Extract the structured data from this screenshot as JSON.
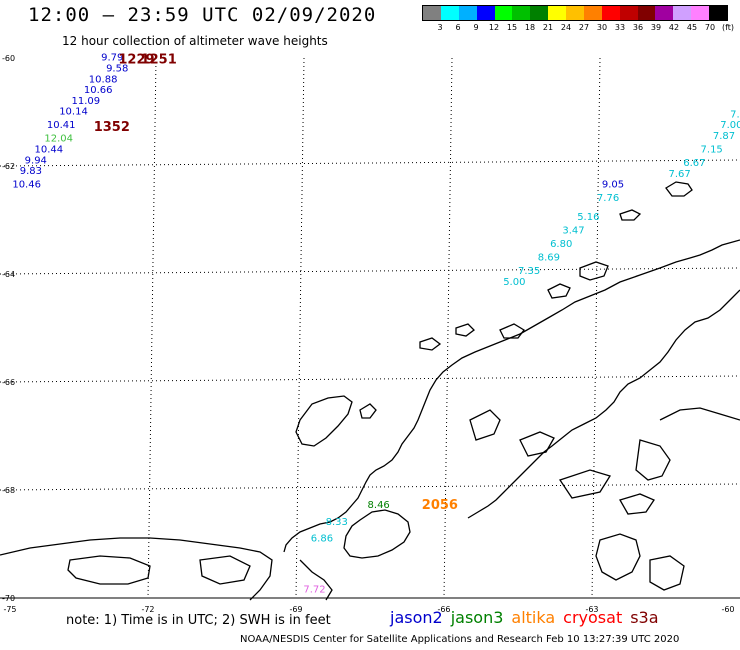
{
  "header": {
    "title": "12:00 – 23:59 UTC 02/09/2020",
    "subtitle": "12 hour collection of altimeter wave heights"
  },
  "colorbar": {
    "colors": [
      "#808080",
      "#00ffff",
      "#00b0ff",
      "#0000ff",
      "#00ff00",
      "#00c000",
      "#008000",
      "#ffff00",
      "#ffc000",
      "#ff8000",
      "#ff0000",
      "#c00000",
      "#800000",
      "#a000a0",
      "#d0a0ff",
      "#ff80ff",
      "#000000"
    ],
    "labels": [
      "3",
      "6",
      "9",
      "12",
      "15",
      "18",
      "21",
      "24",
      "27",
      "30",
      "33",
      "36",
      "39",
      "42",
      "45",
      "70",
      "(ft)"
    ]
  },
  "axes": {
    "y_labels": [
      "-60",
      "-62",
      "-64",
      "-66",
      "-68",
      "-70"
    ],
    "x_labels": [
      "-75",
      "-72",
      "-69",
      "-66",
      "-63",
      "-60"
    ]
  },
  "tracks": [
    {
      "satellite": "jason2",
      "color": "#0000cc",
      "points": [
        {
          "t": "9.79",
          "lon": -72.95,
          "lat": -60.05
        },
        {
          "t": "9.58",
          "lon": -72.85,
          "lat": -60.25
        },
        {
          "t": "10.88",
          "lon": -73.2,
          "lat": -60.45
        },
        {
          "t": "10.66",
          "lon": -73.3,
          "lat": -60.65
        },
        {
          "t": "11.09",
          "lon": -73.55,
          "lat": -60.85
        },
        {
          "t": "10.14",
          "lon": -73.8,
          "lat": -61.05
        },
        {
          "t": "10.41",
          "lon": -74.05,
          "lat": -61.3
        },
        {
          "t": "10.44",
          "lon": -74.3,
          "lat": -61.75
        },
        {
          "t": "9.94",
          "lon": -74.5,
          "lat": -61.95
        },
        {
          "t": "9.83",
          "lon": -74.6,
          "lat": -62.15
        },
        {
          "t": "10.46",
          "lon": -74.75,
          "lat": -62.4
        },
        {
          "t": "9.05",
          "lon": -62.8,
          "lat": -62.4
        }
      ]
    },
    {
      "satellite": "jason3",
      "color": "#40c040",
      "points": [
        {
          "t": "12.04",
          "lon": -74.1,
          "lat": -61.55
        }
      ]
    },
    {
      "satellite": "jason3",
      "color": "#008000",
      "points": [
        {
          "t": "8.46",
          "lon": -67.55,
          "lat": -68.33
        }
      ]
    },
    {
      "satellite": "cryosat",
      "color": "#800000",
      "points": [
        {
          "t": "1229",
          "lon": -72.6,
          "lat": -60.1
        },
        {
          "t": "1251",
          "lon": -72.15,
          "lat": -60.1
        },
        {
          "t": "1352",
          "lon": -73.1,
          "lat": -61.35
        }
      ]
    },
    {
      "satellite": "altika",
      "color": "#ff8000",
      "points": [
        {
          "t": "2056",
          "lon": -66.45,
          "lat": -68.35
        }
      ]
    },
    {
      "satellite": "s3a",
      "color": "#00bfd0",
      "points": [
        {
          "t": "7.",
          "lon": -60.2,
          "lat": -61.1
        },
        {
          "t": "7.00",
          "lon": -60.4,
          "lat": -61.3
        },
        {
          "t": "7.87",
          "lon": -60.55,
          "lat": -61.5
        },
        {
          "t": "7.15",
          "lon": -60.8,
          "lat": -61.75
        },
        {
          "t": "6.67",
          "lon": -61.15,
          "lat": -62.0
        },
        {
          "t": "7.67",
          "lon": -61.45,
          "lat": -62.2
        },
        {
          "t": "7.76",
          "lon": -62.9,
          "lat": -62.65
        },
        {
          "t": "5.16",
          "lon": -63.3,
          "lat": -63.0
        },
        {
          "t": "3.47",
          "lon": -63.6,
          "lat": -63.25
        },
        {
          "t": "6.80",
          "lon": -63.85,
          "lat": -63.5
        },
        {
          "t": "8.69",
          "lon": -64.1,
          "lat": -63.75
        },
        {
          "t": "7.35",
          "lon": -64.5,
          "lat": -64.0
        },
        {
          "t": "5.00",
          "lon": -64.8,
          "lat": -64.2
        },
        {
          "t": "8.33",
          "lon": -68.4,
          "lat": -68.65
        },
        {
          "t": "6.86",
          "lon": -68.7,
          "lat": -68.95
        }
      ]
    },
    {
      "satellite": "s3a",
      "color": "#e060e0",
      "points": [
        {
          "t": "7.72",
          "lon": -68.85,
          "lat": -69.9
        }
      ]
    }
  ],
  "footer": {
    "note": "note: 1) Time is in UTC; 2) SWH is in feet",
    "credit": "NOAA/NESDIS Center for Satellite Applications and Research   Feb 10 13:27:39 UTC 2020"
  },
  "legend": [
    {
      "name": "jason2",
      "color": "#0000cc"
    },
    {
      "name": "jason3",
      "color": "#008000"
    },
    {
      "name": "altika",
      "color": "#ff8000"
    },
    {
      "name": "cryosat",
      "color": "#ff0000"
    },
    {
      "name": "s3a",
      "color": "#800000"
    }
  ]
}
